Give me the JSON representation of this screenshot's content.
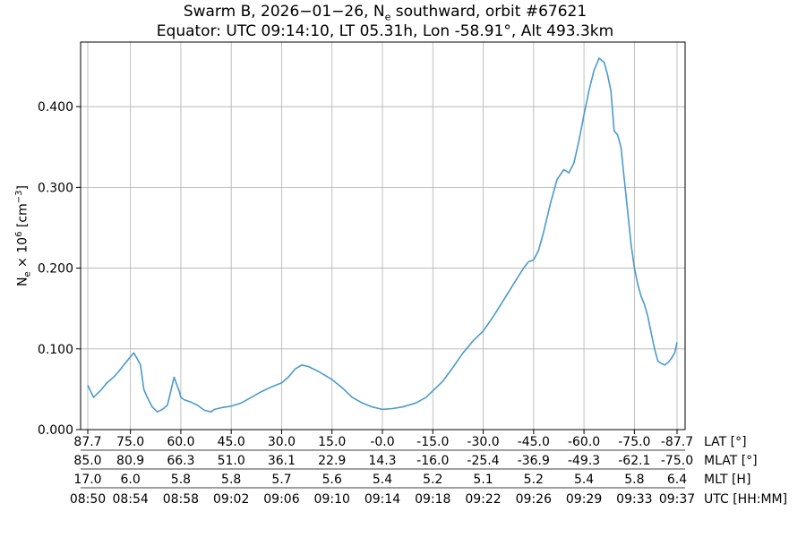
{
  "chart_data": {
    "type": "line",
    "title": "Swarm B, 2026-01-26, Ne southward, orbit #67621",
    "subtitle": "Equator: UTC 09:14:10, LT 05.31h, Lon -58.91°, Alt 493.3km",
    "ylabel": "Ne × 10^6 [cm^-3]",
    "xlabel": "",
    "ylim": [
      0.0,
      0.48
    ],
    "yticks": [
      0.0,
      0.1,
      0.2,
      0.3,
      0.4
    ],
    "yticklabels": [
      "0.000",
      "0.100",
      "0.200",
      "0.300",
      "0.400"
    ],
    "grid": true,
    "line_color": "#4c9acc",
    "x_rows": [
      {
        "name": "LAT [°]",
        "labels": [
          "87.7",
          "75.0",
          "60.0",
          "45.0",
          "30.0",
          "15.0",
          "-0.0",
          "-15.0",
          "-30.0",
          "-45.0",
          "-60.0",
          "-75.0",
          "-87.7"
        ]
      },
      {
        "name": "MLAT [°]",
        "labels": [
          "85.0",
          "80.9",
          "66.3",
          "51.0",
          "36.1",
          "22.9",
          "14.3",
          "-16.0",
          "-25.4",
          "-36.9",
          "-49.3",
          "-62.1",
          "-75.0"
        ]
      },
      {
        "name": "MLT [H]",
        "labels": [
          "17.0",
          "6.0",
          "5.8",
          "5.8",
          "5.7",
          "5.6",
          "5.4",
          "5.2",
          "5.1",
          "5.2",
          "5.4",
          "5.8",
          "6.4"
        ]
      },
      {
        "name": "UTC [HH:MM]",
        "labels": [
          "08:50",
          "08:54",
          "08:58",
          "09:02",
          "09:06",
          "09:10",
          "09:14",
          "09:18",
          "09:22",
          "09:26",
          "09:29",
          "09:33",
          "09:37"
        ]
      }
    ],
    "series": [
      {
        "x": [
          87.7,
          86.0,
          84.0,
          82.0,
          80.0,
          78.5,
          77.0,
          76.0,
          75.0,
          74.0,
          73.0,
          72.0,
          71.0,
          70.0,
          68.5,
          67.0,
          65.5,
          64.0,
          62.0,
          60.5,
          60.0,
          59.0,
          57.0,
          55.0,
          53.0,
          51.0,
          50.0,
          48.0,
          45.0,
          42.0,
          39.0,
          36.0,
          33.0,
          30.0,
          28.0,
          26.0,
          24.0,
          22.0,
          19.0,
          15.0,
          12.0,
          9.0,
          6.0,
          3.0,
          0.0,
          -3.0,
          -6.0,
          -10.0,
          -13.0,
          -15.0,
          -18.0,
          -21.0,
          -24.0,
          -27.0,
          -30.0,
          -33.0,
          -36.0,
          -39.0,
          -42.0,
          -43.5,
          -45.0,
          -46.5,
          -48.0,
          -50.0,
          -52.0,
          -54.0,
          -55.5,
          -57.0,
          -58.5,
          -60.0,
          -61.5,
          -63.0,
          -64.5,
          -66.0,
          -67.0,
          -68.0,
          -69.0,
          -70.0,
          -71.0,
          -72.0,
          -73.0,
          -74.0,
          -75.0,
          -76.0,
          -77.0,
          -78.0,
          -79.0,
          -80.0,
          -81.0,
          -82.0,
          -83.0,
          -84.0,
          -85.0,
          -86.0,
          -87.0,
          -87.7
        ],
        "y": [
          0.055,
          0.04,
          0.048,
          0.058,
          0.065,
          0.072,
          0.08,
          0.085,
          0.09,
          0.095,
          0.088,
          0.08,
          0.05,
          0.04,
          0.028,
          0.022,
          0.025,
          0.03,
          0.065,
          0.048,
          0.04,
          0.037,
          0.034,
          0.03,
          0.024,
          0.022,
          0.025,
          0.027,
          0.029,
          0.033,
          0.04,
          0.047,
          0.053,
          0.058,
          0.065,
          0.075,
          0.08,
          0.078,
          0.072,
          0.062,
          0.052,
          0.04,
          0.033,
          0.028,
          0.025,
          0.026,
          0.028,
          0.033,
          0.04,
          0.048,
          0.06,
          0.077,
          0.095,
          0.11,
          0.122,
          0.14,
          0.16,
          0.18,
          0.2,
          0.208,
          0.21,
          0.222,
          0.245,
          0.28,
          0.31,
          0.322,
          0.318,
          0.33,
          0.358,
          0.39,
          0.42,
          0.445,
          0.46,
          0.455,
          0.44,
          0.42,
          0.37,
          0.365,
          0.35,
          0.31,
          0.27,
          0.23,
          0.2,
          0.18,
          0.165,
          0.155,
          0.14,
          0.12,
          0.1,
          0.085,
          0.082,
          0.08,
          0.083,
          0.088,
          0.095,
          0.108
        ]
      }
    ]
  }
}
